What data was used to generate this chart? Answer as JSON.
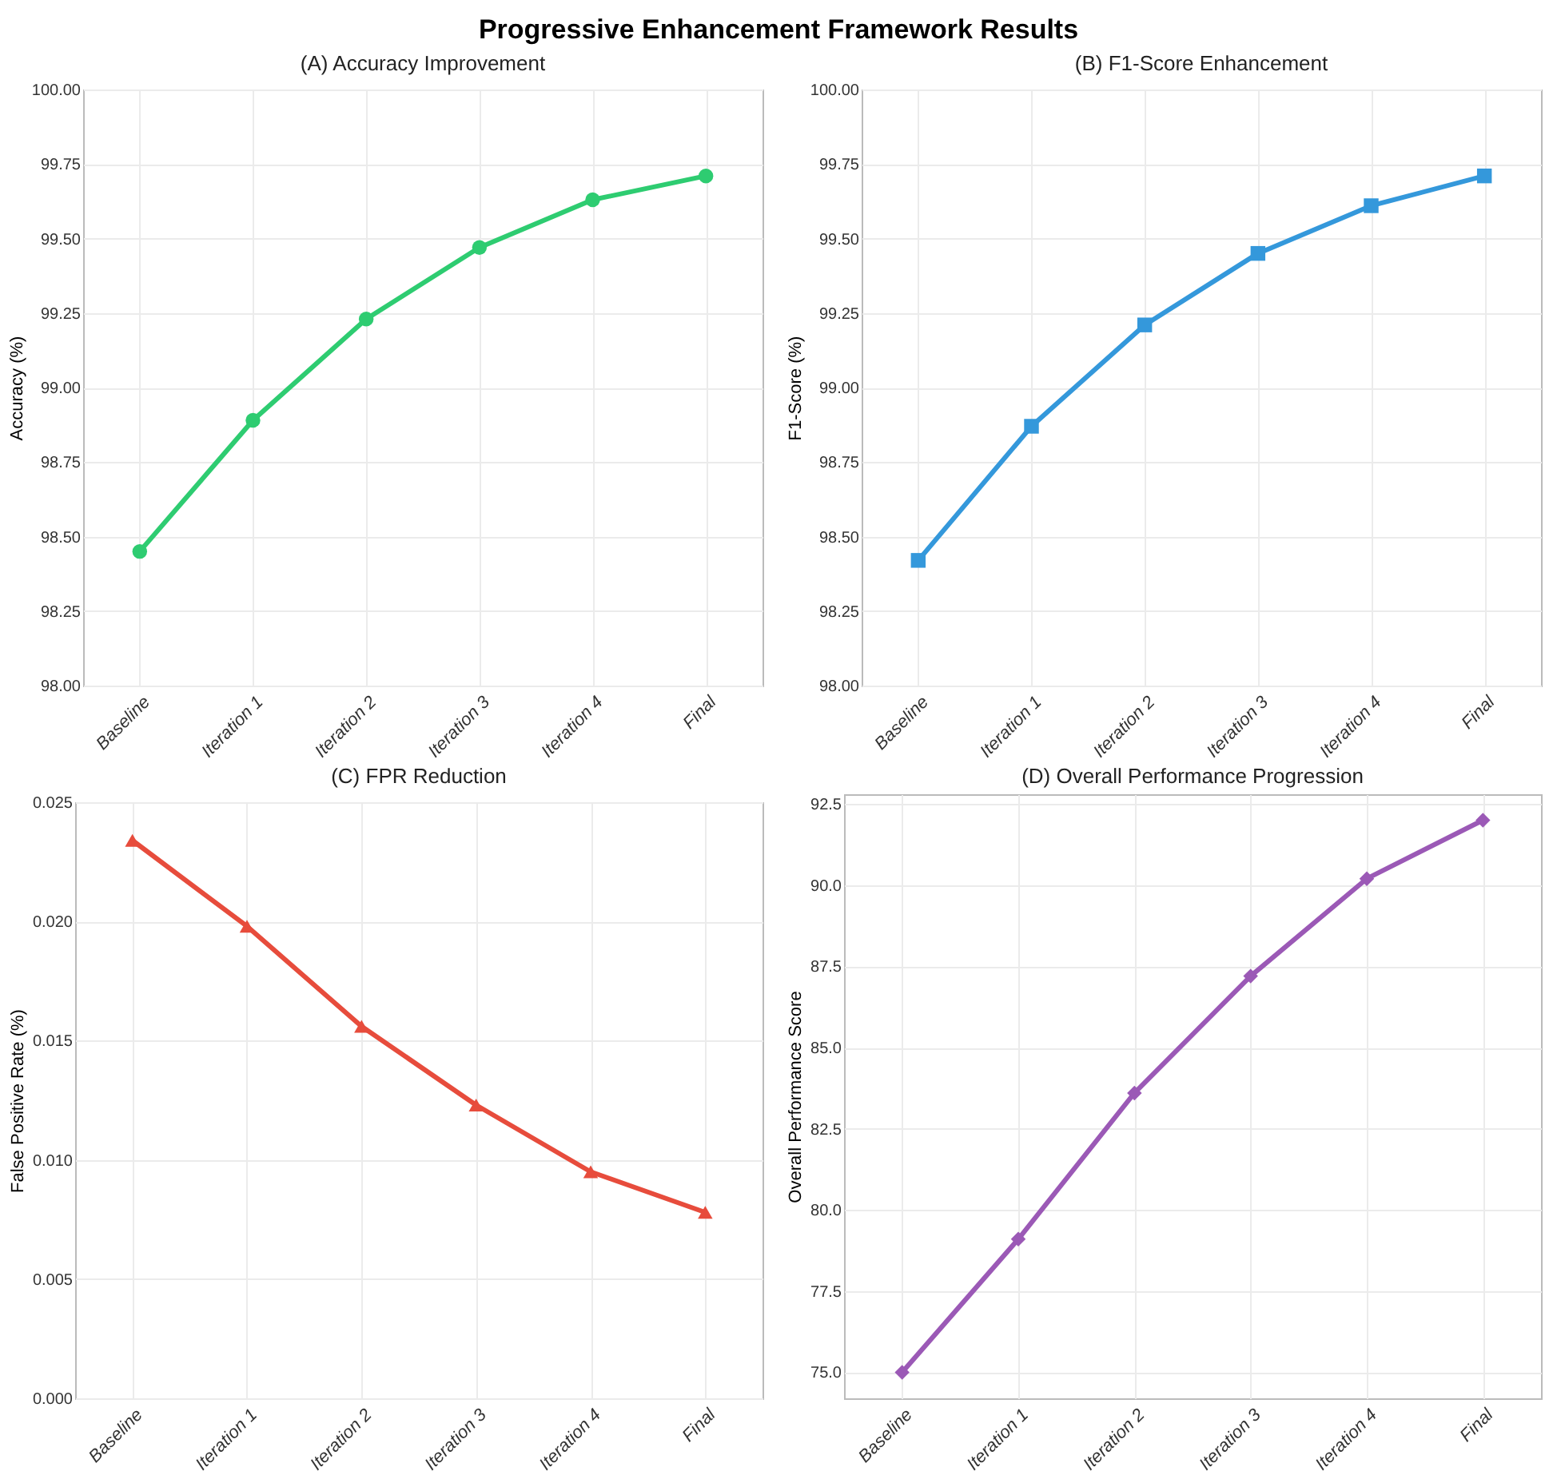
{
  "chart_data": [
    {
      "type": "line",
      "title": "(A) Accuracy Improvement",
      "ylabel": "Accuracy (%)",
      "annotations": [
        "Progressive Enhancement Framework Results"
      ],
      "categories": [
        "Baseline",
        "Iteration 1",
        "Iteration 2",
        "Iteration 3",
        "Iteration 4",
        "Final"
      ],
      "series": [
        {
          "color": "#2ecc71",
          "values": [
            98.45,
            98.89,
            99.23,
            99.47,
            99.63,
            99.71
          ]
        }
      ],
      "ylim": [
        98,
        100
      ],
      "yticks": [
        {
          "value": 98,
          "label": "98.00"
        },
        {
          "value": 98.25,
          "label": "98.25"
        },
        {
          "value": 98.5,
          "label": "98.50"
        },
        {
          "value": 98.75,
          "label": "98.75"
        },
        {
          "value": 99,
          "label": "99.00"
        },
        {
          "value": 99.25,
          "label": "99.25"
        },
        {
          "value": 99.5,
          "label": "99.50"
        },
        {
          "value": 99.75,
          "label": "99.75"
        },
        {
          "value": 100,
          "label": "100.00"
        }
      ],
      "grid": true,
      "marker": "circle",
      "line_style": "solid"
    },
    {
      "type": "line",
      "title": "(B) F1-Score Enhancement",
      "ylabel": "F1-Score (%)",
      "categories": [
        "Baseline",
        "Iteration 1",
        "Iteration 2",
        "Iteration 3",
        "Iteration 4",
        "Final"
      ],
      "series": [
        {
          "color": "#3498db",
          "values": [
            98.42,
            98.87,
            99.21,
            99.45,
            99.61,
            99.71
          ]
        }
      ],
      "ylim": [
        98,
        100
      ],
      "yticks": [
        {
          "value": 98,
          "label": "98.00"
        },
        {
          "value": 98.25,
          "label": "98.25"
        },
        {
          "value": 98.5,
          "label": "98.50"
        },
        {
          "value": 98.75,
          "label": "98.75"
        },
        {
          "value": 99,
          "label": "99.00"
        },
        {
          "value": 99.25,
          "label": "99.25"
        },
        {
          "value": 99.5,
          "label": "99.50"
        },
        {
          "value": 99.75,
          "label": "99.75"
        },
        {
          "value": 100,
          "label": "100.00"
        }
      ],
      "grid": true,
      "marker": "square",
      "line_style": "solid"
    },
    {
      "type": "line",
      "title": "(C) FPR Reduction",
      "ylabel": "False Positive Rate (%)",
      "categories": [
        "Baseline",
        "Iteration 1",
        "Iteration 2",
        "Iteration 3",
        "Iteration 4",
        "Final"
      ],
      "series": [
        {
          "color": "#e74c3c",
          "values": [
            0.0234,
            0.0198,
            0.0156,
            0.0123,
            0.0095,
            0.0078
          ]
        }
      ],
      "ylim": [
        0,
        0.025
      ],
      "yticks": [
        {
          "value": 0,
          "label": "0.000"
        },
        {
          "value": 0.005,
          "label": "0.005"
        },
        {
          "value": 0.01,
          "label": "0.010"
        },
        {
          "value": 0.015,
          "label": "0.015"
        },
        {
          "value": 0.02,
          "label": "0.020"
        },
        {
          "value": 0.025,
          "label": "0.025"
        }
      ],
      "grid": true,
      "marker": "triangle",
      "line_style": "solid"
    },
    {
      "type": "line",
      "title": "(D) Overall Performance Progression",
      "ylabel": "Overall Performance Score",
      "categories": [
        "Baseline",
        "Iteration 1",
        "Iteration 2",
        "Iteration 3",
        "Iteration 4",
        "Final"
      ],
      "series": [
        {
          "color": "#9b59b6",
          "values": [
            75.0,
            79.1,
            83.6,
            87.2,
            90.2,
            92.0
          ]
        }
      ],
      "ylim": [
        74.2,
        92.8
      ],
      "yticks": [
        {
          "value": 75,
          "label": "75.0"
        },
        {
          "value": 77.5,
          "label": "77.5"
        },
        {
          "value": 80,
          "label": "80.0"
        },
        {
          "value": 82.5,
          "label": "82.5"
        },
        {
          "value": 85,
          "label": "85.0"
        },
        {
          "value": 87.5,
          "label": "87.5"
        },
        {
          "value": 90,
          "label": "90.0"
        },
        {
          "value": 92.5,
          "label": "92.5"
        }
      ],
      "grid": true,
      "marker": "diamond",
      "line_style": "solid"
    }
  ]
}
